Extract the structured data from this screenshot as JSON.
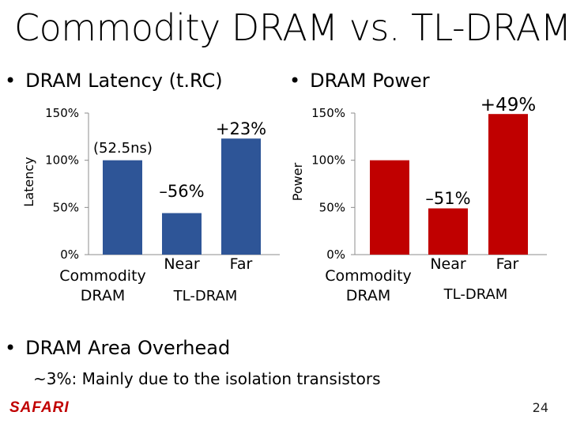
{
  "slide": {
    "title": "Commodity DRAM vs. TL-DRAM",
    "bullet_latency": "DRAM Latency (t.RC)",
    "bullet_power": "DRAM Power",
    "bullet_area": "DRAM Area Overhead",
    "area_detail": "~3%: Mainly due to the isolation transistors",
    "logo_text": "SAFARI",
    "page_number": "24",
    "bullet_symbol": "•"
  },
  "chart_data": [
    {
      "type": "bar",
      "ylabel": "Latency",
      "ylim": [
        0,
        150
      ],
      "yticks": [
        "0%",
        "50%",
        "100%",
        "150%"
      ],
      "categories": [
        "Commodity DRAM",
        "Near",
        "Far"
      ],
      "values": [
        100,
        44,
        123
      ],
      "color": "#2e5597",
      "annotations": [
        "(52.5ns)",
        "–56%",
        "+23%"
      ],
      "group_label": "TL-DRAM",
      "category_lines": [
        [
          "Commodity",
          "DRAM"
        ],
        [
          "Near"
        ],
        [
          "Far"
        ]
      ]
    },
    {
      "type": "bar",
      "ylabel": "Power",
      "ylim": [
        0,
        150
      ],
      "yticks": [
        "0%",
        "50%",
        "100%",
        "150%"
      ],
      "categories": [
        "Commodity DRAM",
        "Near",
        "Far"
      ],
      "values": [
        100,
        49,
        149
      ],
      "color": "#c00000",
      "annotations": [
        "",
        "–51%",
        "+49%"
      ],
      "group_label": "TL-DRAM",
      "category_lines": [
        [
          "Commodity",
          "DRAM"
        ],
        [
          "Near"
        ],
        [
          "Far"
        ]
      ]
    }
  ]
}
